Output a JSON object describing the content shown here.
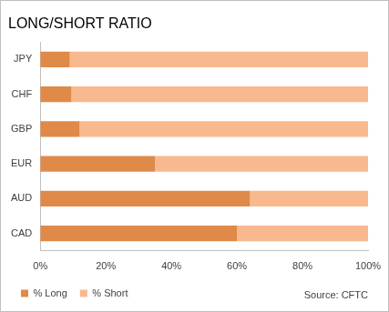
{
  "chart_data": {
    "type": "bar",
    "title": "LONG/SHORT RATIO",
    "orientation": "horizontal",
    "stacked": true,
    "categories": [
      "JPY",
      "CHF",
      "GBP",
      "EUR",
      "AUD",
      "CAD"
    ],
    "series": [
      {
        "name": "% Long",
        "color": "#df8a48",
        "values": [
          9,
          9.5,
          12,
          35,
          64,
          60
        ]
      },
      {
        "name": "% Short",
        "color": "#f8b98f",
        "values": [
          91,
          90.5,
          88,
          65,
          36,
          40
        ]
      }
    ],
    "xlim": [
      0,
      100
    ],
    "xticks": [
      {
        "value": 0,
        "label": "0%"
      },
      {
        "value": 20,
        "label": "20%"
      },
      {
        "value": 40,
        "label": "40%"
      },
      {
        "value": 60,
        "label": "60%"
      },
      {
        "value": 80,
        "label": "80%"
      },
      {
        "value": 100,
        "label": "100%"
      }
    ],
    "grid": false,
    "legend": "bottom",
    "data_labels": false,
    "annotations": [
      "Source: CFTC"
    ]
  }
}
